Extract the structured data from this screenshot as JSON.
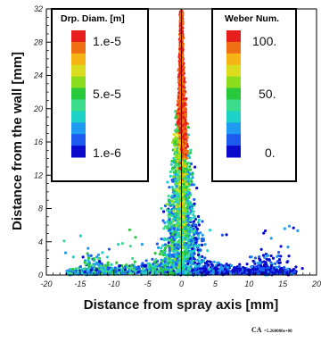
{
  "chart_data": {
    "type": "scatter",
    "xlabel": "Distance from spray axis [mm]",
    "ylabel": "Distance from the wall [mm]",
    "xlim": [
      -20,
      20
    ],
    "ylim": [
      0,
      32
    ],
    "x_ticks": [
      "-20",
      "-15",
      "-10",
      "-5",
      "0",
      "5",
      "10",
      "15",
      "20"
    ],
    "y_ticks": [
      "0",
      "4",
      "8",
      "12",
      "16",
      "20",
      "24",
      "28",
      "32"
    ],
    "grid": false,
    "legends": [
      {
        "title": "Drp. Diam. [m]",
        "ticks": [
          "1.e-5",
          "5.e-5",
          "1.e-6"
        ],
        "placement": "top-left"
      },
      {
        "title": "Weber Num.",
        "ticks": [
          "100.",
          "50.",
          "0."
        ],
        "placement": "top-right"
      }
    ],
    "series": [
      {
        "name": "Drp. Diam. [m]",
        "side": "left",
        "x_range": [
          -20,
          0
        ]
      },
      {
        "name": "Weber Num.",
        "side": "right",
        "x_range": [
          0,
          20
        ]
      }
    ],
    "colormap": [
      "#0a0acc",
      "#1e5af0",
      "#1e9bf0",
      "#1ed2c8",
      "#3cdc8c",
      "#28c83c",
      "#8cdc1e",
      "#dcdc1e",
      "#f5b414",
      "#f06e14",
      "#e61e1e"
    ],
    "timestamp": {
      "label": "CA",
      "value": "=5.260000e+00"
    }
  },
  "colors": {
    "frame": "#000000",
    "split": "#000000"
  }
}
